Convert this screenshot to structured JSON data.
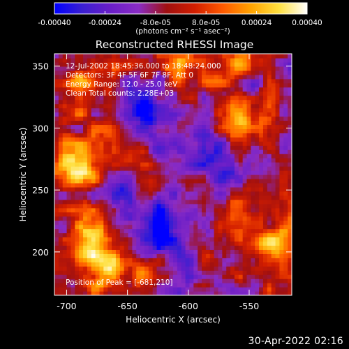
{
  "chart_data": {
    "type": "heatmap",
    "title": "Reconstructed RHESSI Image",
    "xlabel": "Heliocentric X (arcsec)",
    "ylabel": "Heliocentric Y (arcsec)",
    "xlim": [
      -710,
      -515
    ],
    "ylim": [
      165,
      360
    ],
    "x_ticks": [
      -700,
      -650,
      -600,
      -550
    ],
    "y_ticks": [
      200,
      250,
      300,
      350
    ],
    "colorbar": {
      "range": [
        -0.0004,
        0.0004
      ],
      "tick_values": [
        -0.0004,
        -0.00024,
        -8e-05,
        8e-05,
        0.00024,
        0.0004
      ],
      "tick_labels": [
        "-0.00040",
        "-0.00024",
        "-8.0e-05",
        "8.0e-05",
        "0.00024",
        "0.00040"
      ],
      "unit_label": "(photons cm⁻² s⁻¹ asec⁻²)",
      "colors": [
        "#0000ff",
        "#3b1fd0",
        "#6a1ec8",
        "#8a2cc4",
        "#a01010",
        "#d21e00",
        "#ff5a00",
        "#ffa300",
        "#ffe040",
        "#ffffff"
      ]
    },
    "annotations": [
      "12-Jul-2002 18:45:36.000 to 18:48:24.000",
      "Detectors: 3F 4F 5F 6F 7F 8F, Att 0",
      "Energy Range: 12.0 - 25.0 keV",
      "Clean     Total counts: 2.28E+03"
    ],
    "peak_label": "Position of Peak = [-681,210]",
    "peak": [
      -681,
      210
    ],
    "grid": false
  },
  "footer": {
    "timestamp": "30-Apr-2022 02:16"
  }
}
